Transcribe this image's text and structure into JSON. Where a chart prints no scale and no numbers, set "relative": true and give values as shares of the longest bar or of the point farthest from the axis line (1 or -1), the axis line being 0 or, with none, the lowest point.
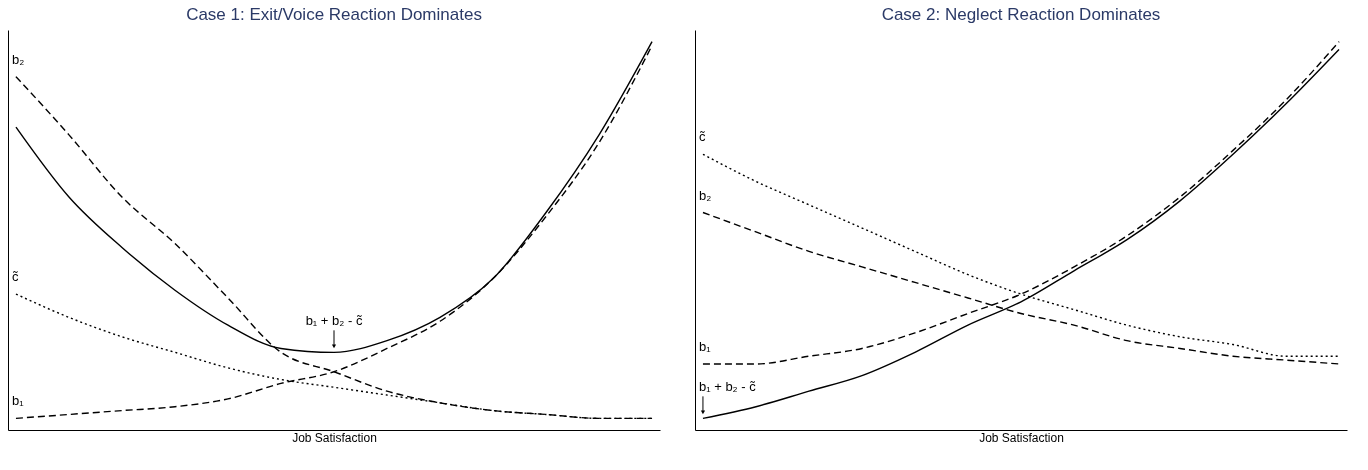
{
  "chart_data": [
    {
      "type": "line",
      "title": "Case 1: Exit/Voice Reaction Dominates",
      "xlabel": "Job Satisfaction",
      "relative": true,
      "tick_labels": false,
      "categories": [
        null,
        null,
        null,
        null,
        null,
        null,
        null,
        null,
        null,
        null,
        null,
        null,
        null
      ],
      "series": [
        {
          "name": "b₁ + b₂ - c̃",
          "color": "#000000",
          "line_style": "solid",
          "values": [
            0.78,
            0.6,
            0.47,
            0.36,
            0.27,
            0.21,
            0.2,
            0.23,
            0.29,
            0.39,
            0.56,
            0.76,
            1.0
          ]
        },
        {
          "name": "b₂",
          "color": "#000000",
          "line_style": "dashed",
          "values": [
            0.91,
            0.76,
            0.6,
            0.48,
            0.34,
            0.2,
            0.15,
            0.1,
            0.07,
            0.05,
            0.04,
            0.03,
            0.03
          ]
        },
        {
          "name": "c̃",
          "color": "#000000",
          "line_style": "dotted",
          "values": [
            0.35,
            0.29,
            0.24,
            0.2,
            0.16,
            0.13,
            0.11,
            0.09,
            0.07,
            0.05,
            0.04,
            0.03,
            0.03
          ]
        },
        {
          "name": "b₁",
          "color": "#000000",
          "line_style": "dashed",
          "values": [
            0.03,
            0.04,
            0.05,
            0.06,
            0.08,
            0.12,
            0.15,
            0.21,
            0.28,
            0.39,
            0.55,
            0.74,
            0.99
          ]
        }
      ]
    },
    {
      "type": "line",
      "title": "Case 2: Neglect Reaction Dominates",
      "xlabel": "Job Satisfaction",
      "relative": true,
      "tick_labels": false,
      "categories": [
        null,
        null,
        null,
        null,
        null,
        null,
        null,
        null,
        null,
        null,
        null,
        null,
        null
      ],
      "series": [
        {
          "name": "c̃",
          "color": "#000000",
          "line_style": "dotted",
          "values": [
            0.71,
            0.64,
            0.58,
            0.52,
            0.46,
            0.4,
            0.35,
            0.31,
            0.27,
            0.24,
            0.22,
            0.19,
            0.19
          ]
        },
        {
          "name": "b₂",
          "color": "#000000",
          "line_style": "dashed",
          "values": [
            0.56,
            0.51,
            0.46,
            0.42,
            0.38,
            0.34,
            0.3,
            0.27,
            0.23,
            0.21,
            0.19,
            0.18,
            0.17
          ]
        },
        {
          "name": "b₁",
          "color": "#000000",
          "line_style": "dashed",
          "values": [
            0.17,
            0.17,
            0.19,
            0.21,
            0.25,
            0.3,
            0.35,
            0.42,
            0.5,
            0.6,
            0.72,
            0.85,
            1.0
          ]
        },
        {
          "name": "b₁ + b₂ - c̃",
          "color": "#000000",
          "line_style": "solid",
          "values": [
            0.03,
            0.06,
            0.1,
            0.14,
            0.2,
            0.27,
            0.33,
            0.41,
            0.49,
            0.59,
            0.71,
            0.84,
            0.98
          ]
        }
      ]
    }
  ]
}
